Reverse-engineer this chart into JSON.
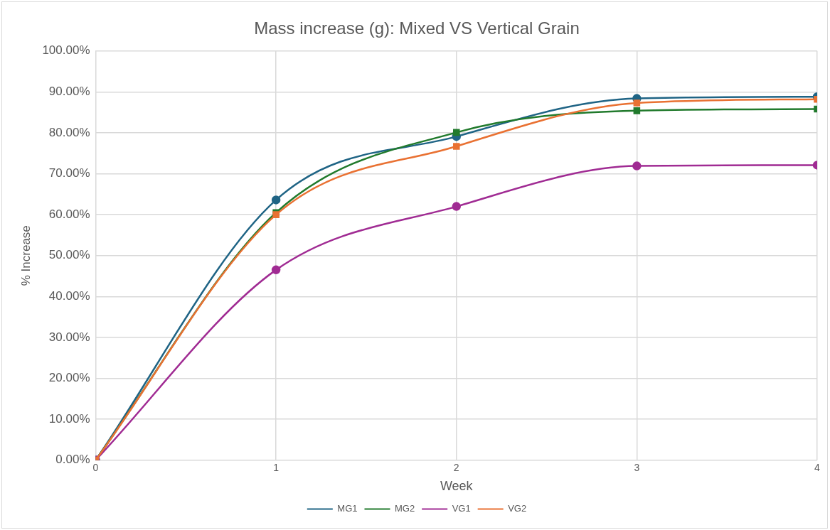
{
  "chart_data": {
    "type": "line",
    "title": "Mass increase (g): Mixed VS Vertical Grain",
    "xlabel": "Week",
    "ylabel": "% Increase",
    "x": [
      0,
      1,
      2,
      3,
      4
    ],
    "series": [
      {
        "name": "MG1",
        "color": "#1f6485",
        "marker": "circle",
        "values": [
          0,
          63.6,
          79.1,
          88.4,
          88.8
        ]
      },
      {
        "name": "MG2",
        "color": "#217a2c",
        "marker": "square",
        "values": [
          0,
          60.5,
          80.1,
          85.4,
          85.8
        ]
      },
      {
        "name": "VG1",
        "color": "#a02b93",
        "marker": "circle",
        "values": [
          0,
          46.5,
          62.0,
          71.9,
          72.1
        ]
      },
      {
        "name": "VG2",
        "color": "#e97132",
        "marker": "square",
        "values": [
          0,
          60.0,
          76.7,
          87.3,
          88.2
        ]
      }
    ],
    "xlim": [
      0,
      4
    ],
    "xticks": [
      0,
      1,
      2,
      3,
      4
    ],
    "ylim": [
      0,
      100
    ],
    "yticks": [
      {
        "value": 0,
        "label": "0.00%"
      },
      {
        "value": 10,
        "label": "10.00%"
      },
      {
        "value": 20,
        "label": "20.00%"
      },
      {
        "value": 30,
        "label": "30.00%"
      },
      {
        "value": 40,
        "label": "40.00%"
      },
      {
        "value": 50,
        "label": "50.00%"
      },
      {
        "value": 60,
        "label": "60.00%"
      },
      {
        "value": 70,
        "label": "70.00%"
      },
      {
        "value": 80,
        "label": "80.00%"
      },
      {
        "value": 90,
        "label": "90.00%"
      },
      {
        "value": 100,
        "label": "100.00%"
      }
    ],
    "grid": true,
    "legend": "bottom",
    "line_style": "solid"
  }
}
